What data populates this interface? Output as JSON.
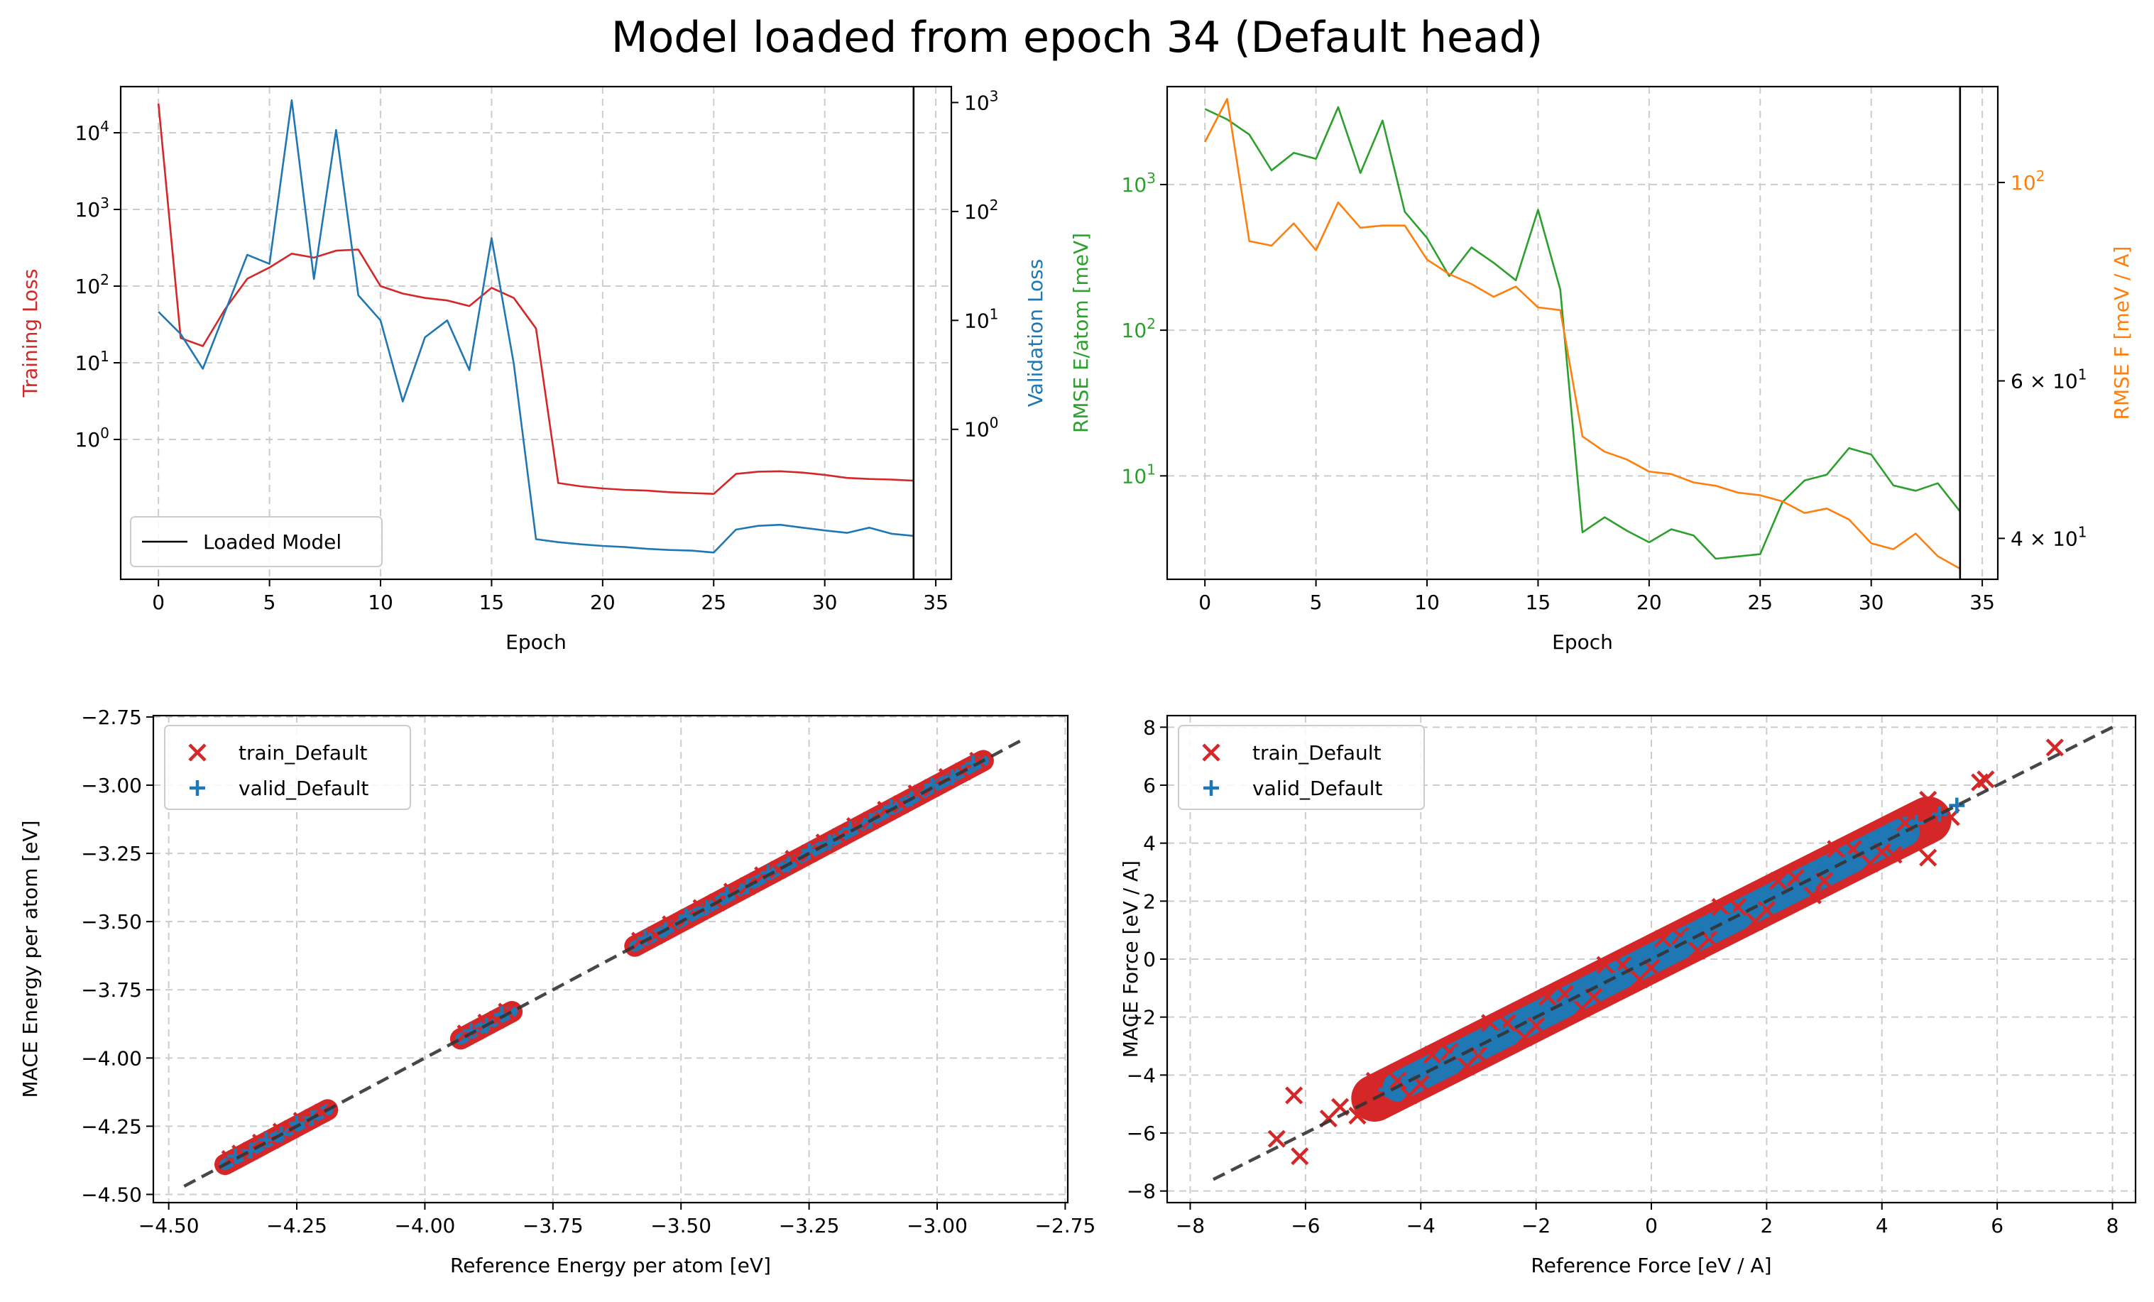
{
  "figure": {
    "title": "Model loaded from epoch 34 (Default head)"
  },
  "colors": {
    "train": "#d62728",
    "valid": "#1f77b4",
    "energy_rmse": "#2ca02c",
    "force_rmse": "#ff7f0e",
    "loaded_line": "#000000",
    "diagonal": "#333333",
    "grid": "#cccccc"
  },
  "chart_data": [
    {
      "type": "line",
      "id": "loss",
      "xlabel": "Epoch",
      "ylabel_left": "Training Loss",
      "ylabel_right": "Validation Loss",
      "xlim": [
        -1.7,
        35.7
      ],
      "xticks": [
        0,
        5,
        10,
        15,
        20,
        25,
        30,
        35
      ],
      "ylim_left_log": [
        0.015,
        40000
      ],
      "ylim_right_log": [
        0.042,
        1400
      ],
      "yticks_left": [
        {
          "v": 1,
          "label": "10^0"
        },
        {
          "v": 10,
          "label": "10^1"
        },
        {
          "v": 100,
          "label": "10^2"
        },
        {
          "v": 1000,
          "label": "10^3"
        },
        {
          "v": 10000,
          "label": "10^4"
        }
      ],
      "yticks_right": [
        {
          "v": 1,
          "label": "10^0"
        },
        {
          "v": 10,
          "label": "10^1"
        },
        {
          "v": 100,
          "label": "10^2"
        },
        {
          "v": 1000,
          "label": "10^3"
        }
      ],
      "vline_epoch": 34,
      "legend": {
        "position": "lower-left",
        "entries": [
          "Loaded Model"
        ]
      },
      "grid": true,
      "series": [
        {
          "name": "Training Loss",
          "axis": "left",
          "x": [
            0,
            1,
            2,
            3,
            4,
            5,
            6,
            7,
            8,
            9,
            10,
            11,
            12,
            13,
            14,
            15,
            16,
            17,
            18,
            19,
            20,
            21,
            22,
            23,
            24,
            25,
            26,
            27,
            28,
            29,
            30,
            31,
            32,
            33,
            34
          ],
          "y": [
            24000,
            21,
            16.5,
            50,
            125,
            175,
            265,
            235,
            290,
            300,
            100,
            80,
            70,
            65,
            55,
            95,
            70,
            28,
            0.27,
            0.245,
            0.23,
            0.22,
            0.215,
            0.205,
            0.2,
            0.195,
            0.355,
            0.38,
            0.385,
            0.37,
            0.345,
            0.315,
            0.305,
            0.3,
            0.29
          ]
        },
        {
          "name": "Validation Loss",
          "axis": "right",
          "x": [
            0,
            1,
            2,
            3,
            4,
            5,
            6,
            7,
            8,
            9,
            10,
            11,
            12,
            13,
            14,
            15,
            16,
            17,
            18,
            19,
            20,
            21,
            22,
            23,
            24,
            25,
            26,
            27,
            28,
            29,
            30,
            31,
            32,
            33,
            34
          ],
          "y": [
            12,
            7.5,
            3.6,
            12,
            40,
            33,
            1050,
            24,
            560,
            17,
            10,
            1.8,
            7,
            10,
            3.5,
            57,
            4,
            0.098,
            0.092,
            0.088,
            0.085,
            0.083,
            0.08,
            0.078,
            0.077,
            0.074,
            0.12,
            0.13,
            0.133,
            0.125,
            0.118,
            0.112,
            0.125,
            0.11,
            0.105
          ]
        }
      ]
    },
    {
      "type": "line",
      "id": "rmse",
      "xlabel": "Epoch",
      "ylabel_left": "RMSE E/atom [meV]",
      "ylabel_right": "RMSE F [meV / A]",
      "xlim": [
        -1.7,
        35.7
      ],
      "xticks": [
        0,
        5,
        10,
        15,
        20,
        25,
        30,
        35
      ],
      "ylim_left_log": [
        1.95,
        4700
      ],
      "ylim_right_log": [
        36,
        128
      ],
      "yticks_left": [
        {
          "v": 10,
          "label": "10^1"
        },
        {
          "v": 100,
          "label": "10^2"
        },
        {
          "v": 1000,
          "label": "10^3"
        }
      ],
      "yticks_right": [
        {
          "v": 40,
          "label": "4 × 10^1"
        },
        {
          "v": 60,
          "label": "6 × 10^1"
        },
        {
          "v": 100,
          "label": "10^2"
        }
      ],
      "vline_epoch": 34,
      "grid": true,
      "series": [
        {
          "name": "RMSE E/atom",
          "axis": "left",
          "x": [
            0,
            1,
            2,
            3,
            4,
            5,
            6,
            7,
            8,
            9,
            10,
            11,
            12,
            13,
            14,
            15,
            16,
            17,
            18,
            19,
            20,
            21,
            22,
            23,
            24,
            25,
            26,
            27,
            28,
            29,
            30,
            31,
            32,
            33,
            34
          ],
          "y": [
            3300,
            2800,
            2200,
            1250,
            1650,
            1500,
            3400,
            1200,
            2750,
            650,
            430,
            235,
            370,
            290,
            220,
            670,
            190,
            4.1,
            5.2,
            4.2,
            3.5,
            4.3,
            3.9,
            2.7,
            2.8,
            2.9,
            6.6,
            9.3,
            10.2,
            15.5,
            14,
            8.6,
            7.9,
            8.9,
            5.7
          ]
        },
        {
          "name": "RMSE F",
          "axis": "right",
          "x": [
            0,
            1,
            2,
            3,
            4,
            5,
            6,
            7,
            8,
            9,
            10,
            11,
            12,
            13,
            14,
            15,
            16,
            17,
            18,
            19,
            20,
            21,
            22,
            23,
            24,
            25,
            26,
            27,
            28,
            29,
            30,
            31,
            32,
            33,
            34
          ],
          "y": [
            111,
            124,
            86,
            85,
            90,
            84,
            95,
            89,
            89.5,
            89.5,
            82,
            79,
            77,
            74.5,
            76.5,
            72.5,
            72,
            52,
            50,
            49,
            47.5,
            47.2,
            46.2,
            45.8,
            45,
            44.7,
            44,
            42.7,
            43.2,
            42,
            39.5,
            38.9,
            40.5,
            38.2,
            37
          ]
        }
      ]
    },
    {
      "type": "scatter",
      "id": "energy-parity",
      "xlabel": "Reference Energy per atom [eV]",
      "ylabel": "MACE Energy per atom [eV]",
      "xlim": [
        -4.53,
        -2.745
      ],
      "ylim": [
        -4.53,
        -2.745
      ],
      "xticks": [
        {
          "v": -4.5,
          "label": "−4.50"
        },
        {
          "v": -4.25,
          "label": "−4.25"
        },
        {
          "v": -4.0,
          "label": "−4.00"
        },
        {
          "v": -3.75,
          "label": "−3.75"
        },
        {
          "v": -3.5,
          "label": "−3.50"
        },
        {
          "v": -3.25,
          "label": "−3.25"
        },
        {
          "v": -3.0,
          "label": "−3.00"
        },
        {
          "v": -2.75,
          "label": "−2.75"
        }
      ],
      "yticks": [
        {
          "v": -4.5,
          "label": "−4.50"
        },
        {
          "v": -4.25,
          "label": "−4.25"
        },
        {
          "v": -4.0,
          "label": "−4.00"
        },
        {
          "v": -3.75,
          "label": "−3.75"
        },
        {
          "v": -3.5,
          "label": "−3.50"
        },
        {
          "v": -3.25,
          "label": "−3.25"
        },
        {
          "v": -3.0,
          "label": "−3.00"
        },
        {
          "v": -2.75,
          "label": "−2.75"
        }
      ],
      "diagonal": [
        -4.47,
        -2.83
      ],
      "legend": {
        "position": "top-left",
        "entries": [
          "train_Default",
          "valid_Default"
        ]
      },
      "grid": true,
      "series": [
        {
          "name": "train_Default",
          "marker": "x",
          "x": [
            -4.38,
            -4.36,
            -4.34,
            -4.32,
            -4.3,
            -4.28,
            -4.26,
            -4.24,
            -4.22,
            -4.2,
            -3.92,
            -3.9,
            -3.88,
            -3.86,
            -3.84,
            -3.58,
            -3.55,
            -3.52,
            -3.49,
            -3.46,
            -3.43,
            -3.4,
            -3.37,
            -3.34,
            -3.31,
            -3.28,
            -3.25,
            -3.22,
            -3.19,
            -3.16,
            -3.13,
            -3.1,
            -3.07,
            -3.04,
            -3.01,
            -2.98,
            -2.95,
            -2.92
          ],
          "y": [
            -4.37,
            -4.35,
            -4.34,
            -4.31,
            -4.3,
            -4.27,
            -4.26,
            -4.23,
            -4.22,
            -4.2,
            -3.91,
            -3.9,
            -3.87,
            -3.86,
            -3.83,
            -3.57,
            -3.55,
            -3.51,
            -3.49,
            -3.45,
            -3.43,
            -3.39,
            -3.37,
            -3.33,
            -3.31,
            -3.27,
            -3.25,
            -3.21,
            -3.19,
            -3.15,
            -3.13,
            -3.09,
            -3.07,
            -3.03,
            -3.01,
            -2.97,
            -2.95,
            -2.91
          ]
        },
        {
          "name": "valid_Default",
          "marker": "+",
          "x": [
            -4.37,
            -4.34,
            -4.31,
            -4.28,
            -4.25,
            -4.22,
            -3.91,
            -3.88,
            -3.85,
            -3.57,
            -3.53,
            -3.49,
            -3.45,
            -3.41,
            -3.37,
            -3.33,
            -3.29,
            -3.25,
            -3.21,
            -3.17,
            -3.13,
            -3.09,
            -3.05,
            -3.01,
            -2.97,
            -2.93
          ],
          "y": [
            -4.36,
            -4.34,
            -4.3,
            -4.28,
            -4.24,
            -4.22,
            -3.9,
            -3.88,
            -3.84,
            -3.56,
            -3.53,
            -3.48,
            -3.45,
            -3.4,
            -3.37,
            -3.32,
            -3.29,
            -3.24,
            -3.21,
            -3.16,
            -3.13,
            -3.08,
            -3.05,
            -3.0,
            -2.97,
            -2.92
          ]
        }
      ]
    },
    {
      "type": "scatter",
      "id": "force-parity",
      "xlabel": "Reference Force [eV / A]",
      "ylabel": "MACE Force [eV / A]",
      "xlim": [
        -8.4,
        8.4
      ],
      "ylim": [
        -8.4,
        8.4
      ],
      "xticks": [
        {
          "v": -8,
          "label": "−8"
        },
        {
          "v": -6,
          "label": "−6"
        },
        {
          "v": -4,
          "label": "−4"
        },
        {
          "v": -2,
          "label": "−2"
        },
        {
          "v": 0,
          "label": "0"
        },
        {
          "v": 2,
          "label": "2"
        },
        {
          "v": 4,
          "label": "4"
        },
        {
          "v": 6,
          "label": "6"
        },
        {
          "v": 8,
          "label": "8"
        }
      ],
      "yticks": [
        {
          "v": -8,
          "label": "−8"
        },
        {
          "v": -6,
          "label": "−6"
        },
        {
          "v": -4,
          "label": "−4"
        },
        {
          "v": -2,
          "label": "−2"
        },
        {
          "v": 0,
          "label": "0"
        },
        {
          "v": 2,
          "label": "2"
        },
        {
          "v": 4,
          "label": "4"
        },
        {
          "v": 6,
          "label": "6"
        },
        {
          "v": 8,
          "label": "8"
        }
      ],
      "diagonal": [
        -7.6,
        8.0
      ],
      "legend": {
        "position": "top-left",
        "entries": [
          "train_Default",
          "valid_Default"
        ]
      },
      "grid": true,
      "series": [
        {
          "name": "train_Default",
          "marker": "x",
          "x": [
            -6.5,
            -6.1,
            -6.2,
            -5.6,
            -5.4,
            -5.1,
            -4.8,
            -4.4,
            -4.0,
            -3.5,
            -3.0,
            -2.5,
            -2.0,
            -1.5,
            -1.0,
            -0.5,
            0.0,
            0.5,
            1.0,
            1.5,
            2.0,
            2.5,
            3.0,
            3.5,
            4.0,
            4.4,
            4.8,
            4.8,
            5.2,
            5.7,
            5.8,
            7.0,
            -4.8,
            -3.8,
            -2.8,
            -1.8,
            -0.8,
            0.2,
            1.2,
            2.2,
            3.2,
            4.2,
            -4.2,
            -3.2,
            -2.2,
            -1.2,
            -0.2,
            0.8,
            1.8,
            2.8,
            3.8
          ],
          "y": [
            -6.2,
            -6.8,
            -4.7,
            -5.5,
            -5.1,
            -5.4,
            -4.9,
            -4.2,
            -4.3,
            -3.2,
            -3.3,
            -2.2,
            -2.3,
            -1.2,
            -1.3,
            -0.2,
            -0.3,
            0.8,
            0.7,
            1.8,
            1.7,
            2.8,
            2.7,
            3.8,
            3.7,
            4.7,
            3.5,
            5.5,
            4.9,
            6.1,
            6.2,
            7.3,
            -4.2,
            -3.3,
            -2.2,
            -1.3,
            -0.2,
            0.7,
            1.8,
            2.7,
            3.8,
            3.6,
            -4.7,
            -3.7,
            -2.7,
            -1.7,
            -0.7,
            0.3,
            1.3,
            2.2,
            3.3
          ]
        },
        {
          "name": "valid_Default",
          "marker": "+",
          "x": [
            -4.6,
            -4.2,
            -3.8,
            -3.4,
            -3.0,
            -2.6,
            -2.2,
            -1.8,
            -1.4,
            -1.0,
            -0.6,
            -0.2,
            0.2,
            0.6,
            1.0,
            1.4,
            1.8,
            2.2,
            2.6,
            3.0,
            3.4,
            3.8,
            4.2,
            4.6,
            5.0,
            5.3
          ],
          "y": [
            -4.5,
            -4.1,
            -3.8,
            -3.3,
            -3.0,
            -2.5,
            -2.2,
            -1.7,
            -1.4,
            -0.9,
            -0.6,
            -0.1,
            0.2,
            0.7,
            1.0,
            1.5,
            1.8,
            2.3,
            2.6,
            3.1,
            3.4,
            3.9,
            4.2,
            4.7,
            5.0,
            5.3
          ]
        }
      ]
    }
  ]
}
